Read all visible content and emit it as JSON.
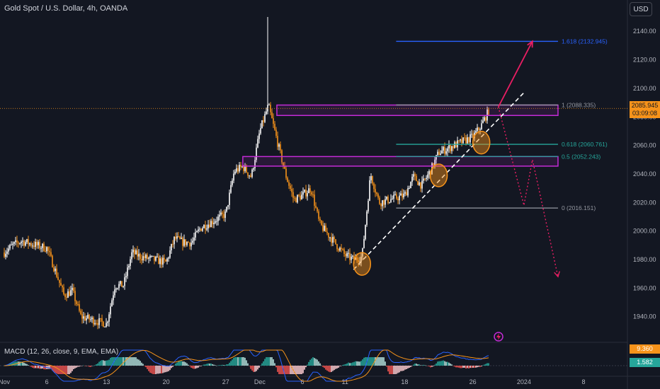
{
  "header": {
    "title": "Gold Spot / U.S. Dollar, 4h, OANDA",
    "currency": "USD"
  },
  "price_tag": {
    "price": "2085.945",
    "countdown": "03:09:08"
  },
  "macd": {
    "label": "MACD (12, 26, close, 9, EMA, EMA)",
    "value1": "9.360",
    "value2": "1.582",
    "color1": "#f7931a",
    "color2": "#26a69a"
  },
  "colors": {
    "bg": "#131722",
    "up": "#ffffff",
    "down": "#f7931a",
    "zone": "#c32bd6",
    "fib_ext": "#2962ff",
    "fib_618": "#26a69a",
    "fib_gray": "#9598a1",
    "arrow": "#e91e63"
  },
  "chart_data": {
    "type": "candlestick",
    "symbol": "Gold Spot / U.S. Dollar",
    "timeframe": "4h",
    "ylim": [
      1925,
      2152
    ],
    "y_ticks": [
      1940,
      1960,
      1980,
      2000,
      2020,
      2040,
      2060,
      2080,
      2100,
      2120,
      2140
    ],
    "x_tick_labels": [
      "Nov",
      "6",
      "13",
      "20",
      "27",
      "Dec",
      "6",
      "11",
      "18",
      "26",
      "2024",
      "8"
    ],
    "x_tick_dates": [
      "2023-11-01",
      "2023-11-06",
      "2023-11-13",
      "2023-11-20",
      "2023-11-27",
      "2023-12-01",
      "2023-12-06",
      "2023-12-11",
      "2023-12-18",
      "2023-12-26",
      "2024-01-01",
      "2024-01-08"
    ],
    "path": [
      [
        "2023-11-01",
        1985
      ],
      [
        "2023-11-02",
        1990
      ],
      [
        "2023-11-03",
        1993
      ],
      [
        "2023-11-06",
        1988
      ],
      [
        "2023-11-07",
        1972
      ],
      [
        "2023-11-08",
        1955
      ],
      [
        "2023-11-09",
        1958
      ],
      [
        "2023-11-10",
        1940
      ],
      [
        "2023-11-13",
        1935
      ],
      [
        "2023-11-14",
        1962
      ],
      [
        "2023-11-15",
        1962
      ],
      [
        "2023-11-16",
        1985
      ],
      [
        "2023-11-17",
        1982
      ],
      [
        "2023-11-20",
        1978
      ],
      [
        "2023-11-21",
        1995
      ],
      [
        "2023-11-22",
        1992
      ],
      [
        "2023-11-23",
        1992
      ],
      [
        "2023-11-24",
        2002
      ],
      [
        "2023-11-27",
        2012
      ],
      [
        "2023-11-28",
        2042
      ],
      [
        "2023-11-29",
        2045
      ],
      [
        "2023-11-30",
        2038
      ],
      [
        "2023-12-01",
        2070
      ],
      [
        "2023-12-02",
        2088
      ],
      [
        "2023-12-04",
        2040
      ],
      [
        "2023-12-05",
        2022
      ],
      [
        "2023-12-06",
        2025
      ],
      [
        "2023-12-07",
        2030
      ],
      [
        "2023-12-08",
        2005
      ],
      [
        "2023-12-11",
        1983
      ],
      [
        "2023-12-12",
        1980
      ],
      [
        "2023-12-13",
        1982
      ],
      [
        "2023-12-14",
        2040
      ],
      [
        "2023-12-15",
        2020
      ],
      [
        "2023-12-18",
        2025
      ],
      [
        "2023-12-19",
        2038
      ],
      [
        "2023-12-20",
        2032
      ],
      [
        "2023-12-21",
        2042
      ],
      [
        "2023-12-22",
        2055
      ],
      [
        "2023-12-26",
        2066
      ],
      [
        "2023-12-27",
        2074
      ],
      [
        "2023-12-28",
        2086
      ]
    ],
    "special_highs": [
      [
        "2023-12-02",
        2150
      ]
    ],
    "resistance_zones": [
      {
        "from": "2023-12-03",
        "to": "2024-01-05",
        "low": 2081,
        "high": 2088.3
      },
      {
        "from": "2023-11-29",
        "to": "2024-01-05",
        "low": 2045.5,
        "high": 2052.2
      }
    ],
    "fib_levels": [
      {
        "label": "1.618 (2132.945)",
        "value": 2132.945,
        "from": "2023-12-17",
        "to": "2024-01-05",
        "color": "#2962ff"
      },
      {
        "label": "1 (2088.335)",
        "value": 2088.335,
        "from": "2023-12-17",
        "to": "2024-01-05",
        "color": "#9598a1"
      },
      {
        "label": "0.618 (2060.761)",
        "value": 2060.761,
        "from": "2023-12-17",
        "to": "2024-01-05",
        "color": "#26a69a"
      },
      {
        "label": "0.5 (2052.243)",
        "value": 2052.243,
        "from": "2023-12-17",
        "to": "2024-01-05",
        "color": "#26a69a"
      },
      {
        "label": "0 (2016.151)",
        "value": 2016.151,
        "from": "2023-12-17",
        "to": "2024-01-05",
        "color": "#9598a1"
      }
    ],
    "trendline": {
      "from": [
        "2023-12-12",
        1973
      ],
      "to": [
        "2024-01-01",
        2097
      ]
    },
    "bullish_arrow": {
      "from": [
        "2023-12-29",
        2087
      ],
      "to": [
        "2024-01-02",
        2133
      ]
    },
    "bearish_path": [
      [
        "2023-12-29",
        2087
      ],
      [
        "2024-01-01",
        2018
      ],
      [
        "2024-01-02",
        2050
      ],
      [
        "2024-01-05",
        1968
      ]
    ],
    "circles": [
      [
        "2023-12-13",
        1977
      ],
      [
        "2023-12-22",
        2039
      ],
      [
        "2023-12-27",
        2062
      ]
    ],
    "current_price": 2085.945
  }
}
